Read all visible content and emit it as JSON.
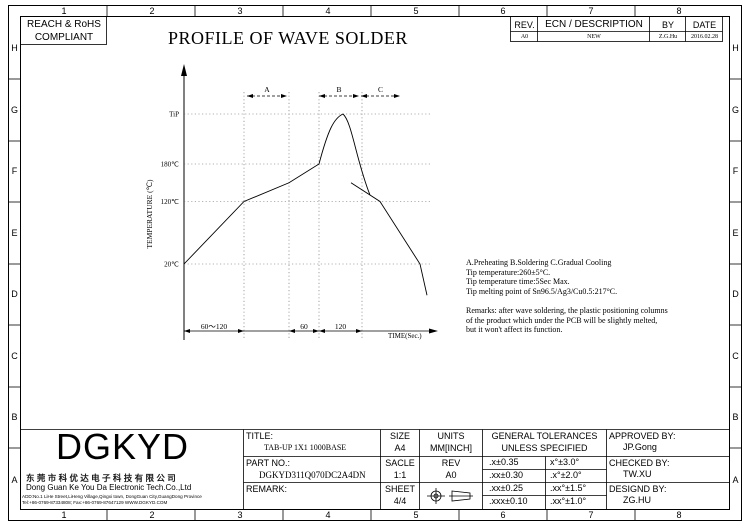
{
  "drawing": {
    "title": "PROFILE OF WAVE SOLDER",
    "compliance": [
      "REACH & RoHS",
      "COMPLIANT"
    ],
    "grid_columns": [
      "1",
      "2",
      "3",
      "4",
      "5",
      "6",
      "7",
      "8"
    ],
    "grid_rows": [
      "H",
      "G",
      "F",
      "E",
      "D",
      "C",
      "B",
      "A"
    ]
  },
  "revision_table": {
    "headers": [
      "REV.",
      "ECN / DESCRIPTION",
      "BY",
      "DATE"
    ],
    "rows": [
      [
        "A0",
        "NEW",
        "Z.G.Hu",
        "2016.02.28"
      ]
    ]
  },
  "chart_data": {
    "type": "line",
    "title": "",
    "xlabel": "TIME(Sec.)",
    "ylabel": "TEMPERATURE (℃)",
    "y_tick_labels": [
      "20℃",
      "120℃",
      "180℃",
      "TiP"
    ],
    "zone_labels": [
      "A",
      "B",
      "C"
    ],
    "time_segments": [
      "60～120",
      "60",
      "120"
    ],
    "series": [
      {
        "values": [
          20,
          120,
          150,
          180,
          260,
          150,
          120,
          20,
          -30
        ]
      }
    ]
  },
  "notes": [
    "A.Preheating  B.Soldering  C.Gradual Cooling",
    "Tip temperature:260±5°C.",
    "Tip temperature time:5Sec Max.",
    "Tip melting point of Sn96.5/Ag3/Cu0.5:217°C.",
    "",
    "Remarks: after wave soldering, the plastic positioning columns",
    "of the product  which under the PCB will be slightly melted,",
    "but it won't affect its function."
  ],
  "company": {
    "logo": "DGKYD",
    "name_cn": "东 莞 市 科 优 达 电 子 科 技 有 限 公 司",
    "name_en": "Dong Guan Ke You Da Electronic Tech.Co.,Ltd",
    "address": "ADD:No.1 LiHe Street,LiHeng Village,Qingxi town, DongGuan City,GuangDong Province",
    "contact": "Tel:+86-0769-87334808; Fax:+86-0769-87647129  WWW.DGKYD.COM"
  },
  "title_block": {
    "title_label": "TITLE:",
    "title_value": "TAB-UP 1X1 1000BASE",
    "part_label": "PART NO.:",
    "part_value": "DGKYD311Q070DC2A4DN",
    "remark_label": "REMARK:",
    "size_label": "SIZE",
    "size_value": "A4",
    "scale_label": "SACLE",
    "scale_value": "1:1",
    "sheet_label": "SHEET",
    "sheet_value": "4/4",
    "units_label": "UNITS",
    "units_value": "MM[INCH]",
    "rev_label": "REV",
    "rev_value": "A0",
    "tol_title_1": "GENERAL TOLERANCES",
    "tol_title_2": "UNLESS SPECIFIED",
    "tolerances": [
      [
        ".x±0.35",
        "x°±3.0°"
      ],
      [
        ".xx±0.30",
        ".x°±2.0°"
      ],
      [
        ".xx±0.25",
        ".xx°±1.5°"
      ],
      [
        ".xxx±0.10",
        ".xx°±1.0°"
      ]
    ],
    "approved_label": "APPROVED BY:",
    "approved_value": "JP.Gong",
    "checked_label": "CHECKED BY:",
    "checked_value": "TW.XU",
    "designed_label": "DESIGND BY:",
    "designed_value": "ZG.HU"
  }
}
